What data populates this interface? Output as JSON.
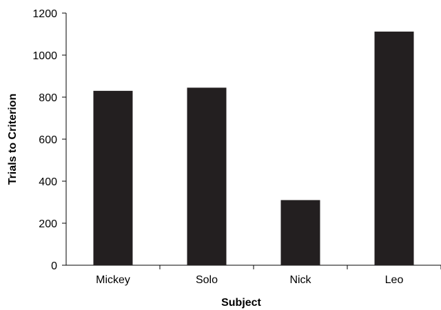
{
  "chart_data": {
    "type": "bar",
    "title": "",
    "xlabel": "Subject",
    "ylabel": "Trials to Criterion",
    "categories": [
      "Mickey",
      "Solo",
      "Nick",
      "Leo"
    ],
    "values": [
      830,
      845,
      310,
      1112
    ],
    "ylim": [
      0,
      1200
    ],
    "yticks": [
      0,
      200,
      400,
      600,
      800,
      1000,
      1200
    ],
    "grid": false,
    "legend": "none",
    "bar_color": "#231f20"
  }
}
